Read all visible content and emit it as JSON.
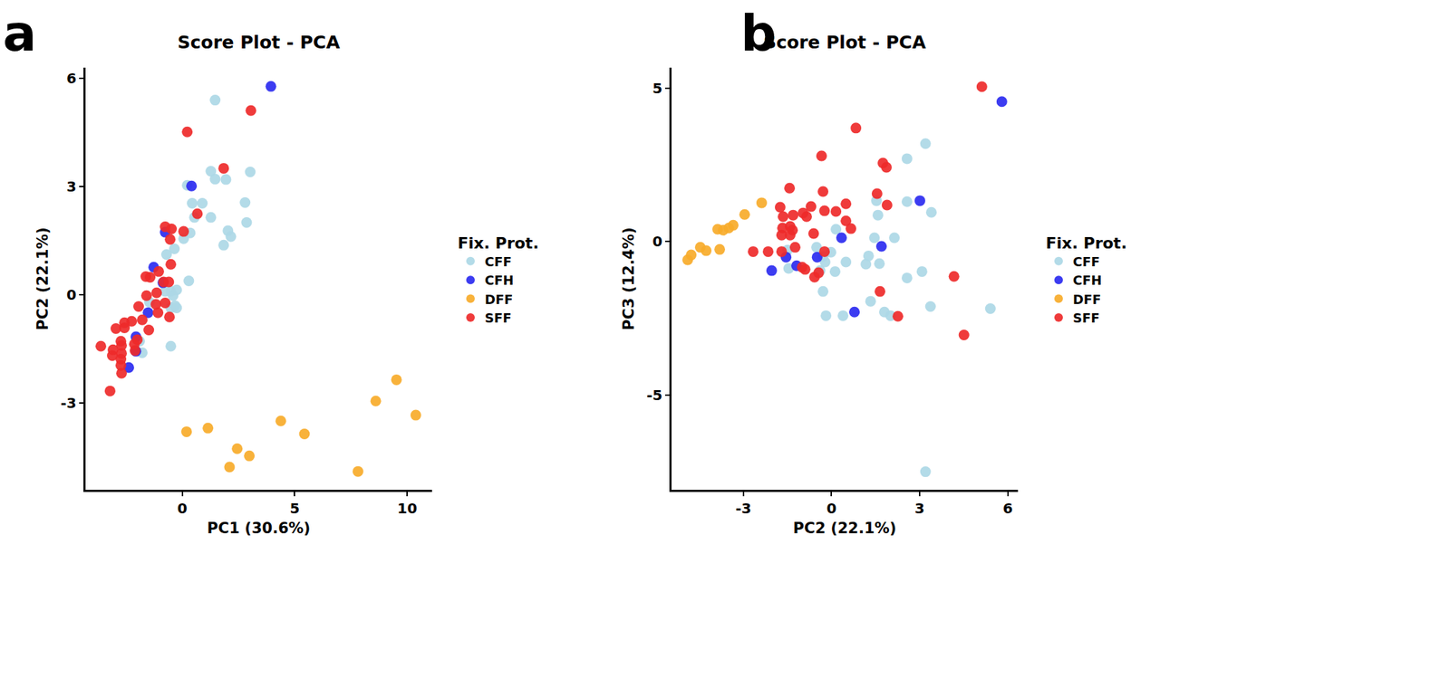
{
  "chart_data": [
    {
      "type": "scatter",
      "title": "Score Plot - PCA",
      "annotations": [
        "a"
      ],
      "x_label": "PC1 (30.6%)",
      "y_label": "PC2 (22.1%)",
      "legend_title": "Fix. Prot.",
      "xlim": [
        -4.3,
        11.1
      ],
      "ylim": [
        -5.4,
        6.3
      ],
      "xticks": [
        0,
        5,
        10
      ],
      "yticks": [
        -3,
        0,
        3,
        6
      ],
      "series": [
        {
          "name": "CFF",
          "color": "#add8e6",
          "x": [
            1.46,
            1.27,
            1.46,
            1.94,
            3.02,
            0.22,
            0.44,
            0.89,
            0.54,
            1.27,
            2.79,
            2.86,
            2.03,
            2.16,
            1.84,
            0.35,
            0.06,
            -0.35,
            -0.7,
            0.29,
            -0.76,
            -0.51,
            -0.41,
            -0.32,
            -0.51,
            -0.25,
            -0.51,
            -1.46,
            -1.78,
            -1.9,
            -0.25
          ],
          "values": [
            5.4,
            3.43,
            3.21,
            3.2,
            3.41,
            3.04,
            2.54,
            2.54,
            2.15,
            2.15,
            2.56,
            2.01,
            1.78,
            1.62,
            1.38,
            1.72,
            1.56,
            1.28,
            1.12,
            0.39,
            0.1,
            0.1,
            -0.02,
            -0.3,
            -0.36,
            -0.36,
            -1.42,
            -0.2,
            -1.6,
            -1.28,
            0.14
          ]
        },
        {
          "name": "CFH",
          "color": "#2b2bf0",
          "x": [
            3.94,
            0.41,
            -0.76,
            -1.27,
            -0.86,
            -1.52,
            -2.06,
            -2.06,
            -2.38
          ],
          "values": [
            5.78,
            3.02,
            1.74,
            0.77,
            0.34,
            -0.49,
            -1.16,
            -1.56,
            -2.01
          ]
        },
        {
          "name": "DFF",
          "color": "#f7ab2a",
          "x": [
            0.19,
            1.14,
            2.44,
            2.98,
            2.1,
            4.38,
            5.43,
            7.81,
            8.6,
            9.52,
            10.38
          ],
          "values": [
            -3.79,
            -3.69,
            -4.26,
            -4.46,
            -4.77,
            -3.49,
            -3.85,
            -4.89,
            -2.94,
            -2.35,
            -3.33
          ]
        },
        {
          "name": "SFF",
          "color": "#ee2a2a",
          "x": [
            3.05,
            0.22,
            1.84,
            0.67,
            -0.76,
            -0.48,
            0.06,
            -0.54,
            -0.51,
            -1.62,
            -1.43,
            -1.05,
            -0.83,
            -0.6,
            -1.14,
            -1.59,
            -1.17,
            -0.76,
            -1.08,
            -0.57,
            -1.94,
            -1.78,
            -1.49,
            -2.25,
            -2.57,
            -2.0,
            -2.13,
            -2.57,
            -2.95,
            -2.1,
            -2.73,
            -2.7,
            -3.62,
            -3.08,
            -3.11,
            -2.7,
            -2.73,
            -2.73,
            -2.7,
            -3.21
          ],
          "values": [
            5.11,
            4.52,
            3.51,
            2.25,
            1.89,
            1.83,
            1.76,
            1.54,
            0.85,
            0.51,
            0.49,
            0.65,
            0.36,
            0.36,
            0.06,
            -0.02,
            -0.26,
            -0.22,
            -0.49,
            -0.61,
            -0.32,
            -0.69,
            -0.97,
            -0.73,
            -0.91,
            -1.24,
            -1.36,
            -0.77,
            -0.93,
            -1.54,
            -1.28,
            -1.4,
            -1.42,
            -1.52,
            -1.68,
            -1.62,
            -1.78,
            -1.95,
            -2.17,
            -2.66
          ]
        }
      ]
    },
    {
      "type": "scatter",
      "title": "Score Plot - PCA",
      "annotations": [
        "b"
      ],
      "x_label": "PC2 (22.1%)",
      "y_label": "PC3 (12.4%)",
      "legend_title": "Fix. Prot.",
      "xlim": [
        -5.45,
        6.35
      ],
      "ylim": [
        -8.1,
        5.67
      ],
      "xticks": [
        -3,
        0,
        3,
        6
      ],
      "yticks": [
        -5,
        0,
        5
      ],
      "series": [
        {
          "name": "CFF",
          "color": "#add8e6",
          "x": [
            3.2,
            2.57,
            1.53,
            2.57,
            3.4,
            1.58,
            0.15,
            1.46,
            2.14,
            -1.5,
            -0.51,
            -0.02,
            -0.29,
            0.49,
            -0.22,
            1.17,
            1.63,
            1.26,
            -1.46,
            0.12,
            -0.39,
            3.08,
            2.57,
            -0.29,
            1.33,
            -0.19,
            0.39,
            1.8,
            2.01,
            3.37,
            5.41,
            3.2
          ],
          "values": [
            3.19,
            2.7,
            1.33,
            1.3,
            0.95,
            0.86,
            0.4,
            0.12,
            0.12,
            -0.28,
            -0.19,
            -0.35,
            -0.49,
            -0.67,
            -0.67,
            -0.74,
            -0.72,
            -0.47,
            -0.88,
            -0.98,
            -0.95,
            -0.98,
            -1.19,
            -1.63,
            -1.95,
            -2.42,
            -2.42,
            -2.3,
            -2.42,
            -2.12,
            -2.19,
            -7.51
          ]
        },
        {
          "name": "CFH",
          "color": "#2b2bf0",
          "x": [
            5.8,
            3.01,
            0.34,
            1.7,
            -2.04,
            -1.55,
            -1.19,
            -0.49,
            0.78
          ],
          "values": [
            4.56,
            1.33,
            0.12,
            -0.16,
            -0.95,
            -0.51,
            -0.79,
            -0.51,
            -2.3
          ]
        },
        {
          "name": "DFF",
          "color": "#f7ab2a",
          "x": [
            -4.9,
            -4.78,
            -4.47,
            -4.27,
            -3.88,
            -3.81,
            -3.69,
            -3.5,
            -3.35,
            -2.96,
            -2.38
          ],
          "values": [
            -0.6,
            -0.44,
            -0.19,
            -0.3,
            0.4,
            -0.26,
            0.37,
            0.44,
            0.53,
            0.88,
            1.26
          ]
        },
        {
          "name": "SFF",
          "color": "#ee2a2a",
          "x": [
            5.12,
            0.83,
            -0.34,
            1.75,
            1.87,
            -1.43,
            -0.29,
            1.55,
            0.49,
            1.89,
            -0.7,
            -1.75,
            -1.31,
            -1.65,
            -0.97,
            -0.85,
            -0.24,
            0.15,
            -1.67,
            -1.41,
            -1.33,
            -0.61,
            0.49,
            0.66,
            -1.7,
            -1.41,
            -1.24,
            -2.67,
            -2.16,
            -1.7,
            -0.24,
            -1.0,
            -0.9,
            -0.58,
            -0.44,
            4.17,
            1.65,
            2.26,
            4.51
          ],
          "values": [
            5.05,
            3.7,
            2.79,
            2.56,
            2.42,
            1.74,
            1.63,
            1.56,
            1.23,
            1.19,
            1.14,
            1.12,
            0.86,
            0.81,
            0.93,
            0.81,
            1.0,
            0.98,
            0.44,
            0.49,
            0.37,
            0.26,
            0.67,
            0.42,
            0.21,
            0.21,
            -0.19,
            -0.33,
            -0.33,
            -0.33,
            -0.33,
            -0.84,
            -0.91,
            -1.16,
            -1.02,
            -1.14,
            -1.63,
            -2.44,
            -3.05
          ]
        }
      ]
    }
  ]
}
